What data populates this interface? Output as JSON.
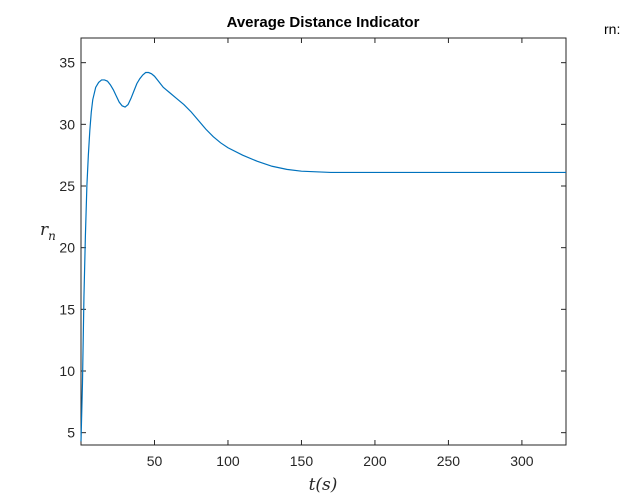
{
  "side_text": "rn:",
  "chart_data": {
    "type": "line",
    "title": "Average Distance Indicator",
    "xlabel": "t(s)",
    "ylabel": "r_n",
    "ylabel_display": {
      "base": "r",
      "sub": "n"
    },
    "xlim": [
      0,
      330
    ],
    "ylim": [
      4,
      37
    ],
    "xticks": [
      50,
      100,
      150,
      200,
      250,
      300
    ],
    "yticks": [
      5,
      10,
      15,
      20,
      25,
      30,
      35
    ],
    "grid": false,
    "line_color": "#0072BD",
    "series": [
      {
        "x": [
          0,
          1,
          2,
          3,
          4,
          5,
          6,
          7,
          8,
          10,
          12,
          14,
          16,
          18,
          20,
          22,
          24,
          26,
          28,
          30,
          32,
          34,
          36,
          38,
          40,
          42,
          44,
          46,
          48,
          50,
          52,
          54,
          56,
          58,
          60,
          65,
          70,
          75,
          80,
          85,
          90,
          95,
          100,
          110,
          120,
          130,
          140,
          150,
          160,
          170,
          180,
          200,
          220,
          240,
          260,
          280,
          300,
          320,
          330
        ],
        "y": [
          4.3,
          9,
          16,
          21,
          25,
          27.5,
          29.5,
          31,
          32,
          33,
          33.4,
          33.6,
          33.6,
          33.5,
          33.2,
          32.8,
          32.3,
          31.8,
          31.5,
          31.4,
          31.6,
          32.1,
          32.7,
          33.3,
          33.7,
          34.0,
          34.2,
          34.2,
          34.1,
          33.9,
          33.6,
          33.3,
          33.0,
          32.8,
          32.6,
          32.1,
          31.6,
          31.0,
          30.3,
          29.6,
          29.0,
          28.5,
          28.1,
          27.5,
          27.0,
          26.6,
          26.35,
          26.2,
          26.15,
          26.1,
          26.1,
          26.1,
          26.1,
          26.1,
          26.1,
          26.1,
          26.1,
          26.1,
          26.1
        ]
      }
    ]
  }
}
